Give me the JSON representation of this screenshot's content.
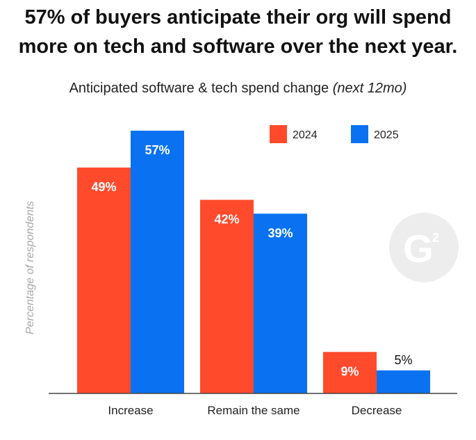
{
  "headline": {
    "line1": "57% of buyers anticipate their org will spend",
    "line2": "more on tech and software over the next year."
  },
  "chart_data": {
    "type": "bar",
    "title": "Anticipated software & tech spend change",
    "title_suffix": "(next 12mo)",
    "ylabel": "Percentage of respondents",
    "xlabel": "",
    "categories": [
      "Increase",
      "Remain the same",
      "Decrease"
    ],
    "series": [
      {
        "name": "2024",
        "values": [
          49,
          42,
          9
        ],
        "color": "#ff4a2b"
      },
      {
        "name": "2025",
        "values": [
          57,
          39,
          5
        ],
        "color": "#0a72f0"
      }
    ],
    "value_suffix": "%",
    "ylim": [
      0,
      57
    ],
    "grid": false,
    "legend": "top-right"
  },
  "logo": {
    "name": "g2-logo-icon",
    "text": "G",
    "superscript": "2"
  }
}
